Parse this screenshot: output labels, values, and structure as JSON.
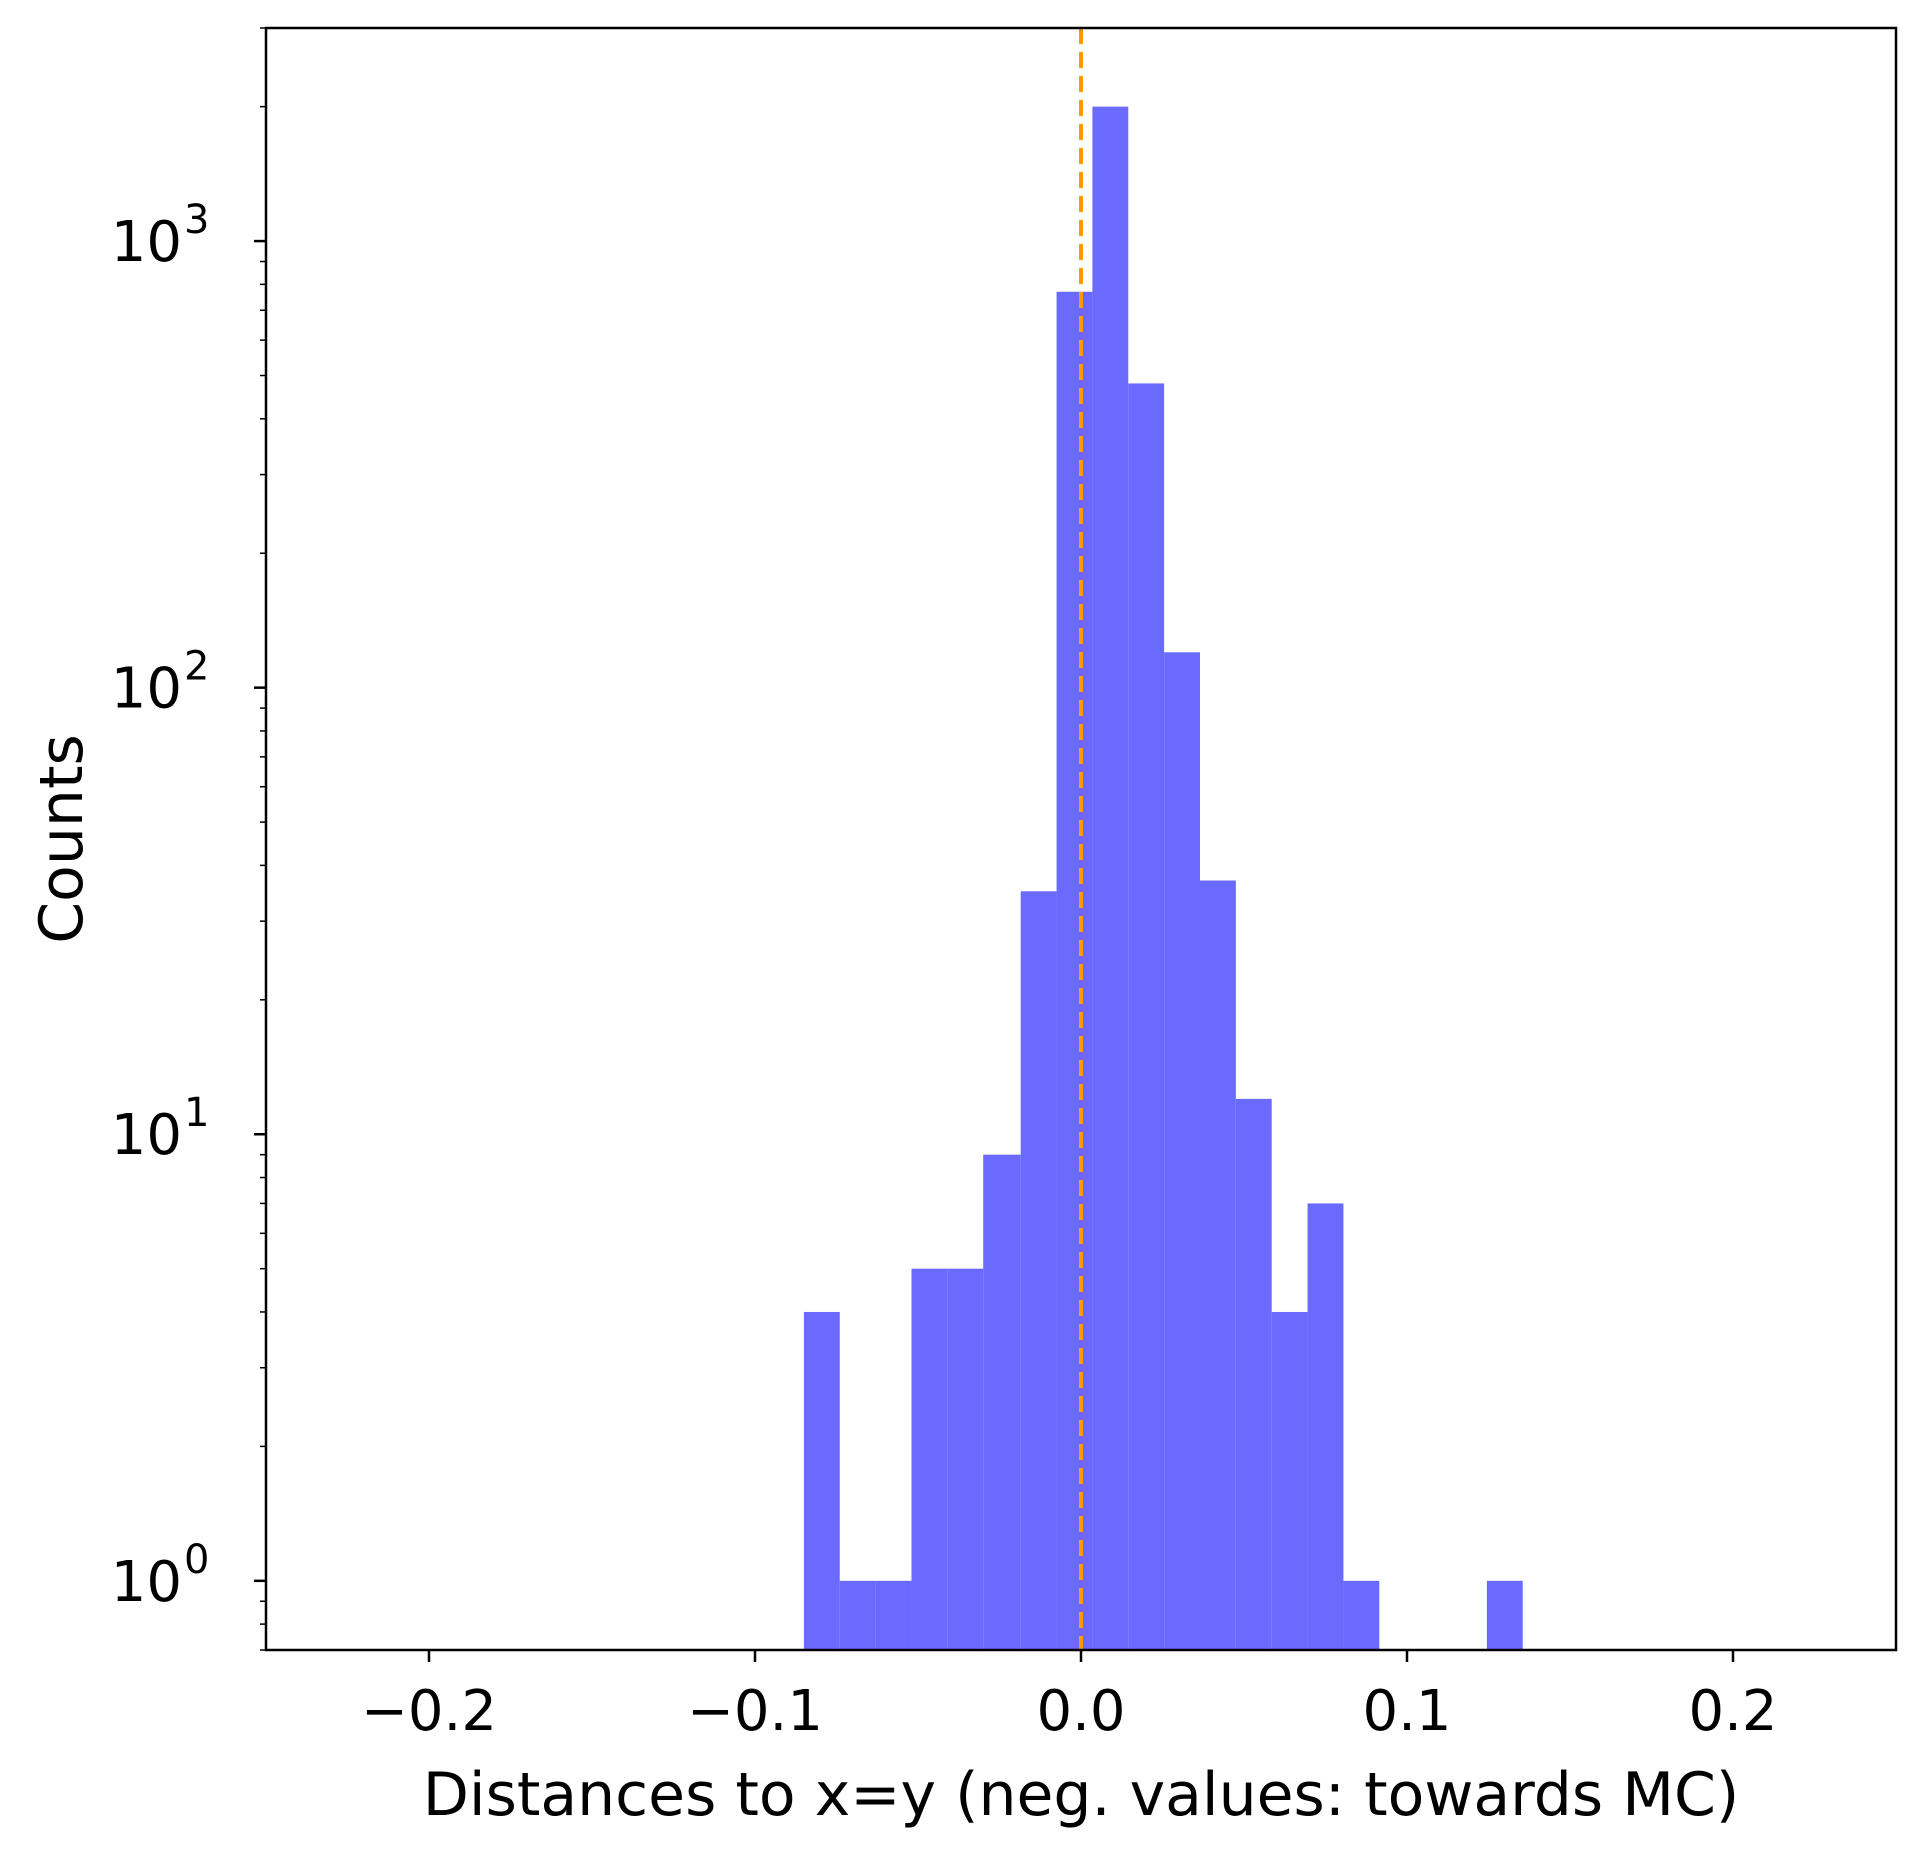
{
  "chart_data": {
    "type": "bar",
    "xlabel": "Distances to x=y (neg. values: towards MC)",
    "ylabel": "Counts",
    "xlim": [
      -0.25,
      0.25
    ],
    "ylim": [
      0.7,
      3000
    ],
    "yscale": "log",
    "grid": false,
    "bar_color": "#6a6aff",
    "x_ticks": [
      {
        "value": -0.2,
        "label": "−0.2"
      },
      {
        "value": -0.1,
        "label": "−0.1"
      },
      {
        "value": 0.0,
        "label": "0.0"
      },
      {
        "value": 0.1,
        "label": "0.1"
      },
      {
        "value": 0.2,
        "label": "0.2"
      }
    ],
    "y_ticks": [
      {
        "value": 1,
        "base": "10",
        "exp": "0"
      },
      {
        "value": 10,
        "base": "10",
        "exp": "1"
      },
      {
        "value": 100,
        "base": "10",
        "exp": "2"
      },
      {
        "value": 1000,
        "base": "10",
        "exp": "3"
      }
    ],
    "bins": [
      {
        "x0": -0.085,
        "x1": -0.074,
        "count": 4
      },
      {
        "x0": -0.074,
        "x1": -0.063,
        "count": 1
      },
      {
        "x0": -0.063,
        "x1": -0.052,
        "count": 1
      },
      {
        "x0": -0.052,
        "x1": -0.041,
        "count": 5
      },
      {
        "x0": -0.041,
        "x1": -0.03,
        "count": 5
      },
      {
        "x0": -0.03,
        "x1": -0.0185,
        "count": 9
      },
      {
        "x0": -0.0185,
        "x1": -0.0075,
        "count": 35
      },
      {
        "x0": -0.0075,
        "x1": 0.0035,
        "count": 770
      },
      {
        "x0": 0.0035,
        "x1": 0.0145,
        "count": 2000
      },
      {
        "x0": 0.0145,
        "x1": 0.0255,
        "count": 480
      },
      {
        "x0": 0.0255,
        "x1": 0.0365,
        "count": 120
      },
      {
        "x0": 0.0365,
        "x1": 0.0475,
        "count": 37
      },
      {
        "x0": 0.0475,
        "x1": 0.0585,
        "count": 12
      },
      {
        "x0": 0.0585,
        "x1": 0.0695,
        "count": 4
      },
      {
        "x0": 0.0695,
        "x1": 0.0805,
        "count": 7
      },
      {
        "x0": 0.0805,
        "x1": 0.0915,
        "count": 1
      },
      {
        "x0": 0.1245,
        "x1": 0.1355,
        "count": 1
      }
    ],
    "reference_line": {
      "x": 0.0,
      "style": "dashed",
      "color": "#ff9900"
    }
  }
}
